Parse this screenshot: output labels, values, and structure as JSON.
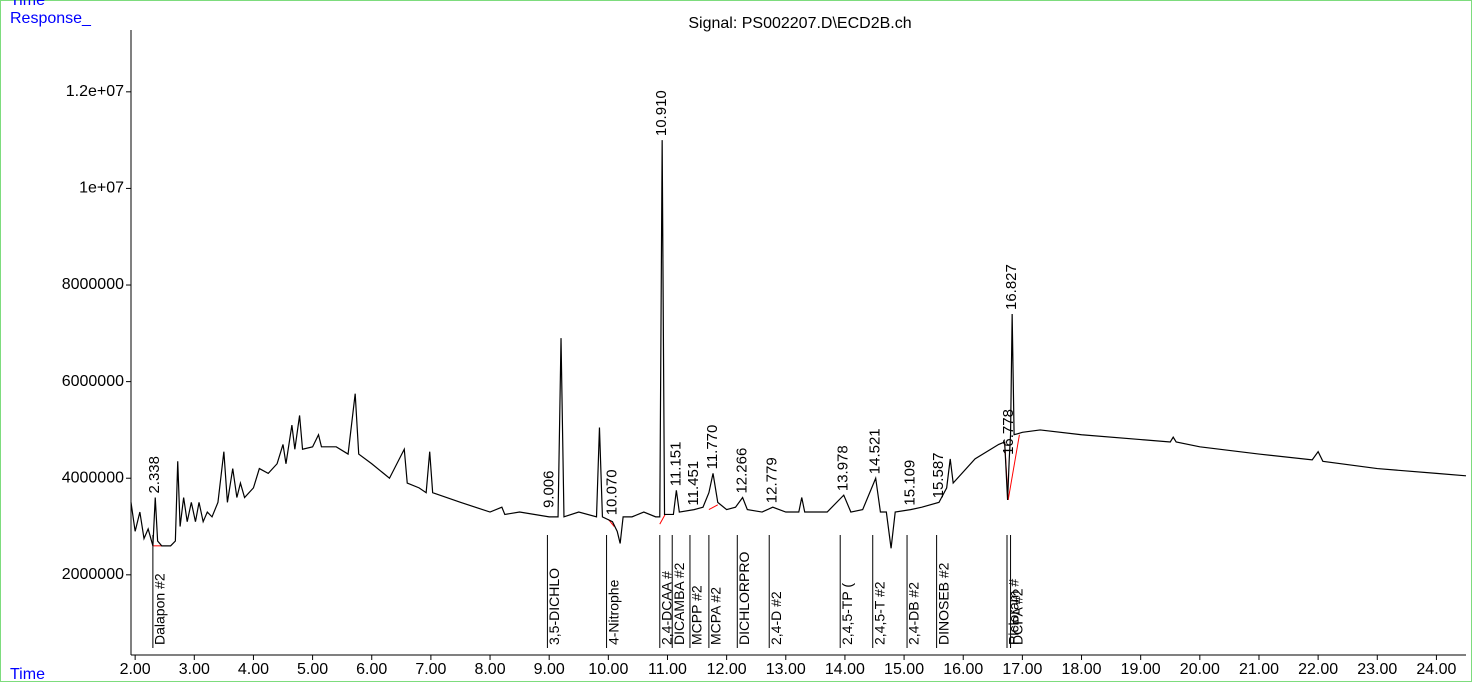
{
  "chart_data": {
    "type": "line",
    "top_label": "Time",
    "y_label": "Response_",
    "x_label": "Time",
    "title": "Signal: PS002207.D\\ECD2B.ch",
    "color": "#000000",
    "peak_label_color": "#0000ff",
    "baseline_color": "#ff0000",
    "xlim": [
      1.93,
      24.5
    ],
    "ylim": [
      340000,
      13280000
    ],
    "xticks": [
      {
        "value": 2,
        "label": "2.00"
      },
      {
        "value": 3,
        "label": "3.00"
      },
      {
        "value": 4,
        "label": "4.00"
      },
      {
        "value": 5,
        "label": "5.00"
      },
      {
        "value": 6,
        "label": "6.00"
      },
      {
        "value": 7,
        "label": "7.00"
      },
      {
        "value": 8,
        "label": "8.00"
      },
      {
        "value": 9,
        "label": "9.00"
      },
      {
        "value": 10,
        "label": "10.00"
      },
      {
        "value": 11,
        "label": "11.00"
      },
      {
        "value": 12,
        "label": "12.00"
      },
      {
        "value": 13,
        "label": "13.00"
      },
      {
        "value": 14,
        "label": "14.00"
      },
      {
        "value": 15,
        "label": "15.00"
      },
      {
        "value": 16,
        "label": "16.00"
      },
      {
        "value": 17,
        "label": "17.00"
      },
      {
        "value": 18,
        "label": "18.00"
      },
      {
        "value": 19,
        "label": "19.00"
      },
      {
        "value": 20,
        "label": "20.00"
      },
      {
        "value": 21,
        "label": "21.00"
      },
      {
        "value": 22,
        "label": "22.00"
      },
      {
        "value": 23,
        "label": "23.00"
      },
      {
        "value": 24,
        "label": "24.00"
      }
    ],
    "yticks": [
      2000000,
      4000000,
      6000000,
      8000000,
      {
        "value": 10000000,
        "label": "1e+07"
      },
      {
        "value": 12000000,
        "label": "1.2e+07"
      }
    ],
    "x": [
      1.93,
      2.0,
      2.08,
      2.15,
      2.22,
      2.3,
      2.34,
      2.38,
      2.45,
      2.6,
      2.68,
      2.72,
      2.76,
      2.82,
      2.88,
      2.95,
      3.02,
      3.08,
      3.15,
      3.22,
      3.3,
      3.4,
      3.5,
      3.56,
      3.65,
      3.72,
      3.78,
      3.85,
      4.0,
      4.1,
      4.25,
      4.4,
      4.5,
      4.55,
      4.65,
      4.7,
      4.78,
      4.83,
      5.0,
      5.1,
      5.15,
      5.4,
      5.6,
      5.72,
      5.78,
      6.0,
      6.2,
      6.3,
      6.55,
      6.6,
      6.8,
      6.92,
      6.98,
      7.03,
      7.5,
      8.0,
      8.2,
      8.25,
      8.5,
      9.0,
      9.15,
      9.2,
      9.25,
      9.5,
      9.8,
      9.85,
      9.9,
      10.07,
      10.15,
      10.2,
      10.25,
      10.4,
      10.6,
      10.8,
      10.87,
      10.91,
      10.95,
      11.1,
      11.15,
      11.2,
      11.45,
      11.6,
      11.7,
      11.77,
      11.85,
      12.0,
      12.15,
      12.27,
      12.35,
      12.6,
      12.78,
      13.0,
      13.22,
      13.27,
      13.32,
      13.7,
      13.98,
      14.1,
      14.3,
      14.52,
      14.6,
      14.7,
      14.78,
      14.85,
      15.11,
      15.3,
      15.59,
      15.72,
      15.78,
      15.83,
      16.2,
      16.6,
      16.7,
      16.75,
      16.778,
      16.8,
      16.827,
      16.86,
      17.0,
      17.3,
      18.0,
      19.0,
      19.5,
      19.55,
      19.6,
      20.0,
      21.0,
      21.9,
      22.0,
      22.08,
      23.0,
      24.0,
      24.5
    ],
    "values": [
      3500000,
      2900000,
      3300000,
      2750000,
      2950000,
      2600000,
      3600000,
      2700000,
      2600000,
      2600000,
      2700000,
      4350000,
      3000000,
      3600000,
      3100000,
      3500000,
      3100000,
      3500000,
      3100000,
      3300000,
      3200000,
      3500000,
      4550000,
      3500000,
      4200000,
      3600000,
      3900000,
      3600000,
      3800000,
      4200000,
      4100000,
      4300000,
      4700000,
      4300000,
      5100000,
      4600000,
      5300000,
      4600000,
      4650000,
      4900000,
      4650000,
      4650000,
      4500000,
      5750000,
      4500000,
      4300000,
      4100000,
      4000000,
      4600000,
      3900000,
      3800000,
      3700000,
      4550000,
      3700000,
      3500000,
      3300000,
      3400000,
      3250000,
      3300000,
      3200000,
      3200000,
      6900000,
      3200000,
      3300000,
      3200000,
      5050000,
      3200000,
      3100000,
      2900000,
      2650000,
      3200000,
      3200000,
      3300000,
      3200000,
      3200000,
      11000000,
      3250000,
      3250000,
      3750000,
      3300000,
      3350000,
      3400000,
      3700000,
      4100000,
      3500000,
      3350000,
      3400000,
      3600000,
      3350000,
      3300000,
      3400000,
      3300000,
      3300000,
      3600000,
      3300000,
      3300000,
      3650000,
      3300000,
      3350000,
      4000000,
      3300000,
      3300000,
      2550000,
      3300000,
      3350000,
      3400000,
      3500000,
      3800000,
      4400000,
      3900000,
      4400000,
      4700000,
      4750000,
      3550000,
      4400000,
      4900000,
      7400000,
      4900000,
      4950000,
      5000000,
      4900000,
      4800000,
      4750000,
      4850000,
      4750000,
      4650000,
      4500000,
      4380000,
      4550000,
      4350000,
      4200000,
      4100000,
      4050000
    ],
    "peak_labels": [
      {
        "x": {
          "value": 2.338,
          "label": "2.338"
        },
        "y": 3600000
      },
      {
        "x": {
          "value": 9.006,
          "label": "9.006"
        },
        "y": 3300000
      },
      {
        "x": {
          "value": 10.07,
          "label": "10.070"
        },
        "y": 3150000
      },
      {
        "x": {
          "value": 10.91,
          "label": "10.910"
        },
        "y": 11000000
      },
      {
        "x": {
          "value": 11.151,
          "label": "11.151"
        },
        "y": 3750000
      },
      {
        "x": {
          "value": 11.451,
          "label": "11.451"
        },
        "y": 3350000
      },
      {
        "x": {
          "value": 11.77,
          "label": "11.770"
        },
        "y": 4100000
      },
      {
        "x": {
          "value": 12.266,
          "label": "12.266"
        },
        "y": 3600000
      },
      {
        "x": {
          "value": 12.779,
          "label": "12.779"
        },
        "y": 3400000
      },
      {
        "x": {
          "value": 13.978,
          "label": "13.978"
        },
        "y": 3650000
      },
      {
        "x": {
          "value": 14.521,
          "label": "14.521"
        },
        "y": 4000000
      },
      {
        "x": {
          "value": 15.109,
          "label": "15.109"
        },
        "y": 3350000
      },
      {
        "x": {
          "value": 15.587,
          "label": "15.587"
        },
        "y": 3500000
      },
      {
        "x": {
          "value": 16.778,
          "label": "16.778"
        },
        "y": 4400000
      },
      {
        "x": {
          "value": 16.827,
          "label": "16.827"
        },
        "y": 7400000
      }
    ],
    "compounds": [
      {
        "name": "Dalapon #2",
        "x": 2.3
      },
      {
        "name": "3,5-DICHLO",
        "x": 8.97
      },
      {
        "name": "4-Nitrophe",
        "x": 9.97
      },
      {
        "name": "2,4-DCAA #",
        "x": 10.87
      },
      {
        "name": "DICAMBA #2",
        "x": 11.08
      },
      {
        "name": "MCPP #2",
        "x": 11.38
      },
      {
        "name": "MCPA #2",
        "x": 11.7
      },
      {
        "name": "DICHLORPRO",
        "x": 12.18
      },
      {
        "name": "2,4-D #2",
        "x": 12.72
      },
      {
        "name": "2,4,5-TP (",
        "x": 13.92
      },
      {
        "name": "2,4,5-T #2",
        "x": 14.47
      },
      {
        "name": "2,4-DB #2",
        "x": 15.05
      },
      {
        "name": "DINOSEB #2",
        "x": 15.55
      },
      {
        "name": "Picloram #",
        "x": 16.74
      },
      {
        "name": "DCPA #2",
        "x": 16.8
      }
    ],
    "baselines": [
      {
        "x": [
          2.3,
          2.45
        ],
        "y": [
          2600000,
          2600000
        ]
      },
      {
        "x": [
          10.0,
          10.1
        ],
        "y": [
          3150000,
          3000000
        ]
      },
      {
        "x": [
          10.87,
          10.96
        ],
        "y": [
          3050000,
          3250000
        ]
      },
      {
        "x": [
          11.7,
          11.85
        ],
        "y": [
          3350000,
          3450000
        ]
      },
      {
        "x": [
          16.7,
          16.76
        ],
        "y": [
          4750000,
          3550000
        ]
      },
      {
        "x": [
          16.76,
          16.95
        ],
        "y": [
          3550000,
          4900000
        ]
      }
    ]
  }
}
